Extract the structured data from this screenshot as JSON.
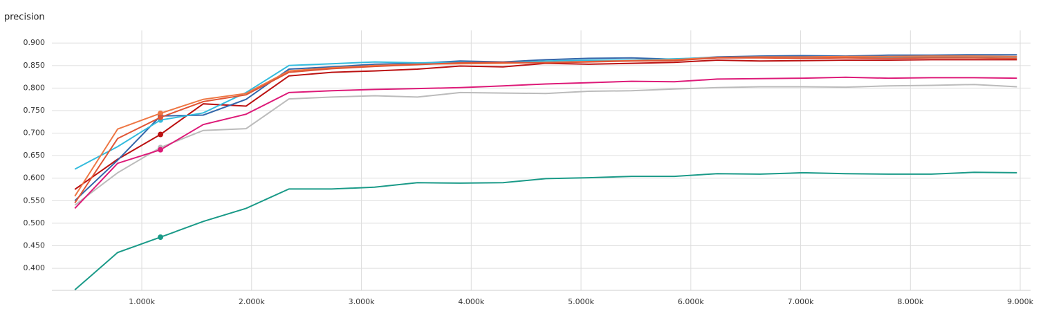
{
  "chart_data": {
    "type": "line",
    "title": "precision",
    "x": [
      390,
      780,
      1170,
      1560,
      1950,
      2340,
      2730,
      3120,
      3510,
      3900,
      4290,
      4680,
      5070,
      5460,
      5850,
      6240,
      6630,
      7020,
      7410,
      7800,
      8190,
      8580,
      8970
    ],
    "highlight_index": 2,
    "xlim": [
      181,
      9094
    ],
    "ylim": [
      0.351,
      0.928
    ],
    "xticks": [
      {
        "value": 1000,
        "label": "1.000k"
      },
      {
        "value": 2000,
        "label": "2.000k"
      },
      {
        "value": 3000,
        "label": "3.000k"
      },
      {
        "value": 4000,
        "label": "4.000k"
      },
      {
        "value": 5000,
        "label": "5.000k"
      },
      {
        "value": 6000,
        "label": "6.000k"
      },
      {
        "value": 7000,
        "label": "7.000k"
      },
      {
        "value": 8000,
        "label": "8.000k"
      },
      {
        "value": 9000,
        "label": "9.000k"
      }
    ],
    "yticks": [
      {
        "value": 0.4,
        "label": "0.400"
      },
      {
        "value": 0.45,
        "label": "0.450"
      },
      {
        "value": 0.5,
        "label": "0.500"
      },
      {
        "value": 0.55,
        "label": "0.550"
      },
      {
        "value": 0.6,
        "label": "0.600"
      },
      {
        "value": 0.65,
        "label": "0.650"
      },
      {
        "value": 0.7,
        "label": "0.700"
      },
      {
        "value": 0.75,
        "label": "0.750"
      },
      {
        "value": 0.8,
        "label": "0.800"
      },
      {
        "value": 0.85,
        "label": "0.850"
      },
      {
        "value": 0.9,
        "label": "0.900"
      }
    ],
    "grid": true,
    "series": [
      {
        "color": "#1a9a88",
        "values": [
          0.352,
          0.435,
          0.469,
          0.504,
          0.533,
          0.576,
          0.576,
          0.58,
          0.59,
          0.589,
          0.59,
          0.599,
          0.601,
          0.604,
          0.604,
          0.61,
          0.609,
          0.612,
          0.61,
          0.609,
          0.609,
          0.613,
          0.612
        ]
      },
      {
        "color": "#bbbbbb",
        "values": [
          0.54,
          0.612,
          0.668,
          0.706,
          0.71,
          0.776,
          0.78,
          0.783,
          0.78,
          0.79,
          0.789,
          0.788,
          0.793,
          0.794,
          0.798,
          0.801,
          0.803,
          0.803,
          0.802,
          0.805,
          0.806,
          0.808,
          0.803
        ]
      },
      {
        "color": "#dd1a78",
        "values": [
          0.533,
          0.633,
          0.663,
          0.719,
          0.742,
          0.79,
          0.794,
          0.797,
          0.799,
          0.801,
          0.805,
          0.809,
          0.812,
          0.815,
          0.814,
          0.82,
          0.821,
          0.822,
          0.824,
          0.822,
          0.823,
          0.823,
          0.822
        ]
      },
      {
        "color": "#bb1111",
        "values": [
          0.575,
          0.642,
          0.697,
          0.765,
          0.76,
          0.827,
          0.835,
          0.838,
          0.842,
          0.849,
          0.847,
          0.855,
          0.853,
          0.855,
          0.857,
          0.862,
          0.86,
          0.861,
          0.862,
          0.862,
          0.863,
          0.863,
          0.863
        ]
      },
      {
        "color": "#3366aa",
        "values": [
          0.55,
          0.64,
          0.738,
          0.74,
          0.775,
          0.842,
          0.847,
          0.853,
          0.855,
          0.86,
          0.858,
          0.863,
          0.866,
          0.867,
          0.864,
          0.869,
          0.871,
          0.872,
          0.871,
          0.873,
          0.873,
          0.874,
          0.874
        ]
      },
      {
        "color": "#33bbdd",
        "values": [
          0.62,
          0.67,
          0.729,
          0.745,
          0.79,
          0.85,
          0.854,
          0.858,
          0.856,
          0.857,
          0.856,
          0.86,
          0.862,
          0.862,
          0.865,
          0.868,
          0.868,
          0.868,
          0.868,
          0.868,
          0.869,
          0.87,
          0.869
        ]
      },
      {
        "color": "#ee7744",
        "values": [
          0.56,
          0.709,
          0.744,
          0.775,
          0.788,
          0.838,
          0.845,
          0.85,
          0.853,
          0.854,
          0.855,
          0.857,
          0.859,
          0.861,
          0.863,
          0.868,
          0.869,
          0.869,
          0.87,
          0.87,
          0.871,
          0.871,
          0.87
        ]
      },
      {
        "color": "#e05535",
        "values": [
          0.545,
          0.688,
          0.735,
          0.77,
          0.785,
          0.835,
          0.843,
          0.848,
          0.852,
          0.856,
          0.857,
          0.856,
          0.858,
          0.86,
          0.861,
          0.867,
          0.867,
          0.866,
          0.867,
          0.866,
          0.867,
          0.867,
          0.866
        ]
      }
    ]
  }
}
